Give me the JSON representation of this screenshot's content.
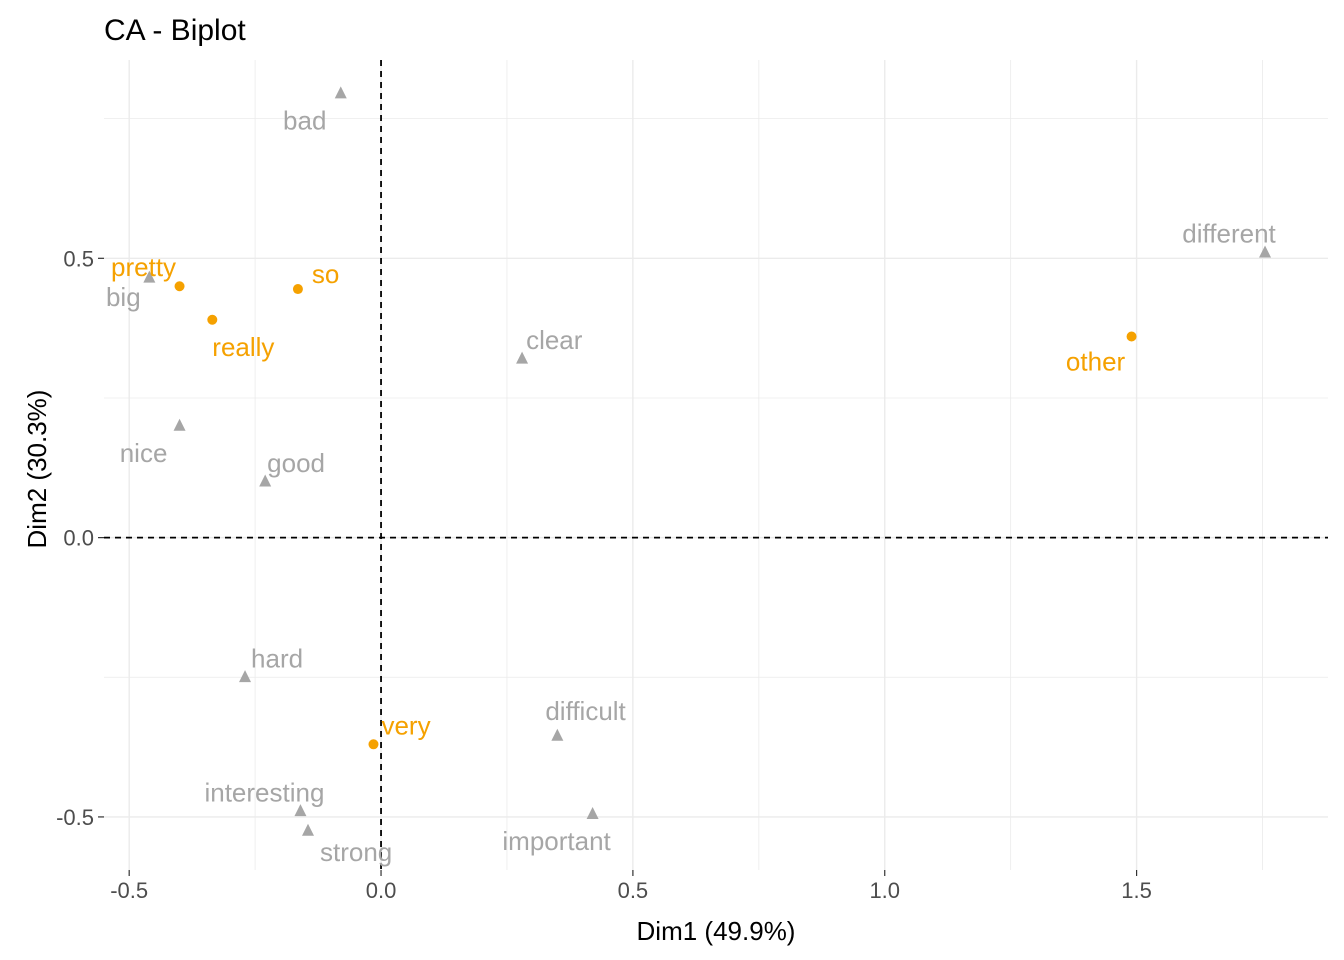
{
  "chart_data": {
    "type": "scatter",
    "title": "CA - Biplot",
    "xlabel": "Dim1 (49.9%)",
    "ylabel": "Dim2 (30.3%)",
    "xlim": [
      -0.55,
      1.88
    ],
    "ylim": [
      -0.595,
      0.855
    ],
    "xticks": [
      -0.5,
      0.0,
      0.5,
      1.0,
      1.5
    ],
    "xtick_labels": [
      "-0.5",
      "0.0",
      "0.5",
      "1.0",
      "1.5"
    ],
    "yticks": [
      -0.5,
      0.0,
      0.5
    ],
    "ytick_labels": [
      "-0.5",
      "0.0",
      "0.5"
    ],
    "grid": true,
    "reference_lines": {
      "x": 0,
      "y": 0,
      "style": "dashed"
    },
    "series": [
      {
        "marker": "dot",
        "color": "#F5A100",
        "points": [
          {
            "label": "pretty",
            "x": -0.4,
            "y": 0.45
          },
          {
            "label": "so",
            "x": -0.165,
            "y": 0.445
          },
          {
            "label": "really",
            "x": -0.335,
            "y": 0.39
          },
          {
            "label": "other",
            "x": 1.49,
            "y": 0.36
          },
          {
            "label": "very",
            "x": -0.015,
            "y": -0.37
          }
        ]
      },
      {
        "marker": "triangle",
        "color": "#A6A6A6",
        "points": [
          {
            "label": "bad",
            "x": -0.08,
            "y": 0.795
          },
          {
            "label": "different",
            "x": 1.755,
            "y": 0.51
          },
          {
            "label": "big",
            "x": -0.46,
            "y": 0.465
          },
          {
            "label": "clear",
            "x": 0.28,
            "y": 0.32
          },
          {
            "label": "nice",
            "x": -0.4,
            "y": 0.2
          },
          {
            "label": "good",
            "x": -0.23,
            "y": 0.1
          },
          {
            "label": "hard",
            "x": -0.27,
            "y": -0.25
          },
          {
            "label": "difficult",
            "x": 0.35,
            "y": -0.355
          },
          {
            "label": "interesting",
            "x": -0.16,
            "y": -0.49
          },
          {
            "label": "important",
            "x": 0.42,
            "y": -0.495
          },
          {
            "label": "strong",
            "x": -0.145,
            "y": -0.525
          }
        ]
      }
    ]
  }
}
